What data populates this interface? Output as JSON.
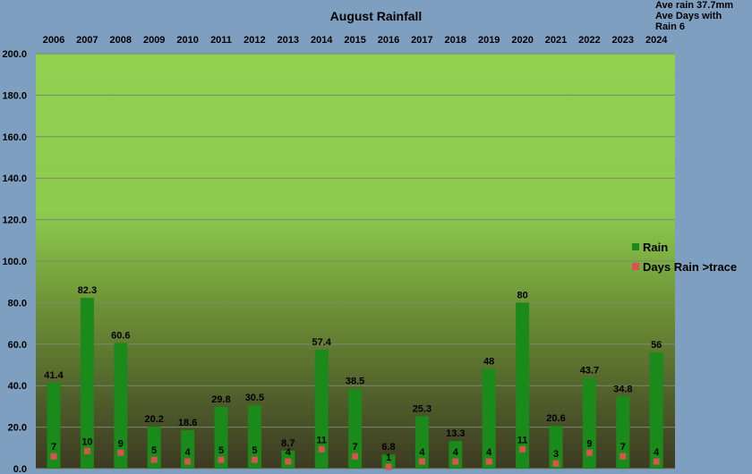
{
  "chart_data": {
    "type": "bar",
    "title": "August Rainfall",
    "categories": [
      "2006",
      "2007",
      "2008",
      "2009",
      "2010",
      "2011",
      "2012",
      "2013",
      "2014",
      "2015",
      "2016",
      "2017",
      "2018",
      "2019",
      "2020",
      "2021",
      "2022",
      "2023",
      "2024"
    ],
    "series": [
      {
        "name": "Rain",
        "type": "bar",
        "values": [
          41.4,
          82.3,
          60.6,
          20.2,
          18.6,
          29.8,
          30.5,
          8.7,
          57.4,
          38.5,
          6.8,
          25.3,
          13.3,
          48,
          80,
          20.6,
          43.7,
          34.8,
          56
        ]
      },
      {
        "name": "Days Rain >trace",
        "type": "marker",
        "values": [
          7,
          10,
          9,
          5,
          4,
          5,
          5,
          4,
          11,
          7,
          1,
          4,
          4,
          4,
          11,
          3,
          9,
          7,
          4
        ]
      }
    ],
    "ylim": [
      0,
      200
    ],
    "yticks": [
      "0.0",
      "20.0",
      "40.0",
      "60.0",
      "80.0",
      "100.0",
      "120.0",
      "140.0",
      "160.0",
      "180.0",
      "200.0"
    ],
    "grid": true,
    "legend": "right",
    "colors": {
      "rain": "#1a8a1a",
      "days": "#d9534f"
    }
  },
  "notes": {
    "line1": "Ave rain 37.7mm",
    "line2": "Ave Days with",
    "line3": "Rain 6"
  }
}
